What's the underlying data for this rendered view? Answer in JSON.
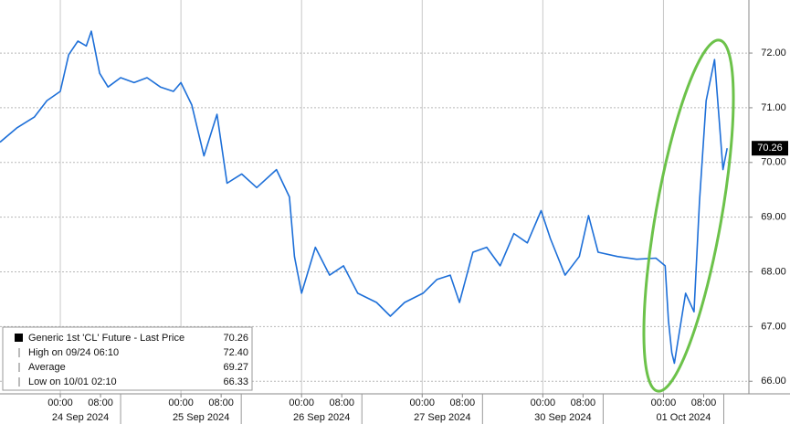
{
  "chart_data": {
    "type": "line",
    "series": [
      {
        "name": "Generic 1st 'CL' Future - Last Price",
        "color": "#1d6fd8",
        "values": [
          70.37,
          70.63,
          70.83,
          71.13,
          71.3,
          71.97,
          72.22,
          72.13,
          72.4,
          71.63,
          71.38,
          71.55,
          71.46,
          71.55,
          71.38,
          71.3,
          71.46,
          71.05,
          70.12,
          70.88,
          69.62,
          69.79,
          69.54,
          69.87,
          69.37,
          68.28,
          67.61,
          68.45,
          67.94,
          68.11,
          67.61,
          67.44,
          67.19,
          67.44,
          67.61,
          67.86,
          67.94,
          67.44,
          68.36,
          68.45,
          68.11,
          68.7,
          68.53,
          69.12,
          68.61,
          67.94,
          68.28,
          69.03,
          68.36,
          68.28,
          68.23,
          68.25,
          68.11,
          67.11,
          66.52,
          66.33,
          67.61,
          67.27,
          69.29,
          71.13,
          71.88,
          70.88,
          69.87,
          70.26
        ]
      }
    ],
    "x": [
      "09/23 12:00",
      "09/23 15:20",
      "09/23 18:50",
      "09/23 21:20",
      "09/24 00:00",
      "09/24 01:40",
      "09/24 03:30",
      "09/24 05:10",
      "09/24 06:10",
      "09/24 07:50",
      "09/24 09:30",
      "09/24 12:00",
      "09/24 14:40",
      "09/24 17:15",
      "09/24 19:55",
      "09/24 22:30",
      "09/25 00:00",
      "09/25 02:10",
      "09/25 04:35",
      "09/25 07:10",
      "09/25 09:10",
      "09/25 12:05",
      "09/25 15:05",
      "09/25 19:00",
      "09/25 21:35",
      "09/25 22:35",
      "09/26 00:00",
      "09/26 02:45",
      "09/26 05:35",
      "09/26 08:20",
      "09/26 11:10",
      "09/26 14:55",
      "09/26 17:40",
      "09/26 20:30",
      "09/27 00:10",
      "09/27 02:55",
      "09/27 05:35",
      "09/27 07:25",
      "09/27 10:05",
      "09/27 12:50",
      "09/27 15:30",
      "09/27 18:15",
      "09/27 20:55",
      "09/27 23:40",
      "09/30 01:30",
      "09/30 04:25",
      "09/30 07:15",
      "09/30 09:05",
      "09/30 11:00",
      "09/30 14:50",
      "09/30 18:40",
      "09/30 22:30",
      "10/01 00:20",
      "10/01 01:00",
      "10/01 01:40",
      "10/01 02:10",
      "10/01 04:25",
      "10/01 06:05",
      "10/01 07:10",
      "10/01 08:30",
      "10/01 10:10",
      "10/01 11:00",
      "10/01 11:50",
      "10/01 12:40"
    ],
    "xlim": [
      "09/23 12:00",
      "10/01 17:00"
    ],
    "xticks": [
      {
        "value": "09/24 00:00",
        "label": "00:00"
      },
      {
        "value": "09/24 08:00",
        "label": "08:00"
      },
      {
        "value": "09/25 00:00",
        "label": "00:00"
      },
      {
        "value": "09/25 08:00",
        "label": "08:00"
      },
      {
        "value": "09/26 00:00",
        "label": "00:00"
      },
      {
        "value": "09/26 08:00",
        "label": "08:00"
      },
      {
        "value": "09/27 00:00",
        "label": "00:00"
      },
      {
        "value": "09/27 08:00",
        "label": "08:00"
      },
      {
        "value": "09/30 00:00",
        "label": "00:00"
      },
      {
        "value": "09/30 08:00",
        "label": "08:00"
      },
      {
        "value": "10/01 00:00",
        "label": "00:00"
      },
      {
        "value": "10/01 08:00",
        "label": "08:00"
      }
    ],
    "x_dates": [
      {
        "value": "09/24",
        "label": "24 Sep 2024"
      },
      {
        "value": "09/25",
        "label": "25 Sep 2024"
      },
      {
        "value": "09/26",
        "label": "26 Sep 2024"
      },
      {
        "value": "09/27",
        "label": "27 Sep 2024"
      },
      {
        "value": "09/30",
        "label": "30 Sep 2024"
      },
      {
        "value": "10/01",
        "label": "01 Oct 2024"
      }
    ],
    "ylim": [
      65.77,
      72.97
    ],
    "yticks": [
      {
        "value": 66,
        "label": "66.00"
      },
      {
        "value": 67,
        "label": "67.00"
      },
      {
        "value": 68,
        "label": "68.00"
      },
      {
        "value": 69,
        "label": "69.00"
      },
      {
        "value": 70,
        "label": "70.00"
      },
      {
        "value": 71,
        "label": "71.00"
      },
      {
        "value": 72,
        "label": "72.00"
      }
    ],
    "grid": true,
    "last_price": 70.26,
    "legend_stats": [
      {
        "label": "High on 09/24 06:10",
        "value": {
          "value": 72.4,
          "label": "72.40"
        }
      },
      {
        "label": "Average",
        "value": 69.27
      },
      {
        "label": "Low on 10/01 02:10",
        "value": 66.33
      }
    ]
  }
}
